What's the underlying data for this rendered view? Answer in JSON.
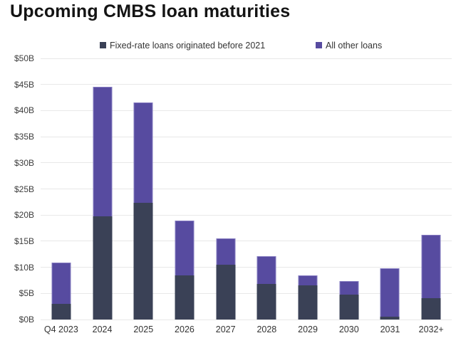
{
  "title": "Upcoming CMBS loan maturities",
  "colors": {
    "fixed_series": "#3a4156",
    "other_series": "#574ba0",
    "gridline": "#e8e8e8",
    "axis_text": "#3d3d3d",
    "title_text": "#141414"
  },
  "chart_data": {
    "type": "bar",
    "stacked": true,
    "title": "Upcoming CMBS loan maturities",
    "categories": [
      "Q4 2023",
      "2024",
      "2025",
      "2026",
      "2027",
      "2028",
      "2029",
      "2030",
      "2031",
      "2032+"
    ],
    "series": [
      {
        "name": "Fixed-rate loans originated before 2021",
        "color": "#3a4156",
        "values": [
          3.0,
          19.8,
          22.4,
          8.5,
          10.5,
          6.8,
          6.6,
          4.8,
          0.6,
          4.1
        ]
      },
      {
        "name": "All other loans",
        "color": "#574ba0",
        "values": [
          7.9,
          24.7,
          19.1,
          10.5,
          5.1,
          5.3,
          1.9,
          2.5,
          9.2,
          12.1
        ]
      }
    ],
    "totals": [
      10.9,
      44.5,
      41.5,
      19.0,
      15.6,
      12.1,
      8.5,
      7.3,
      9.8,
      16.2
    ],
    "xlabel": "",
    "ylabel": "",
    "ylim": [
      0,
      50
    ],
    "ytick_step": 5,
    "ytick_labels": [
      "$0B",
      "$5B",
      "$10B",
      "$15B",
      "$20B",
      "$25B",
      "$30B",
      "$35B",
      "$40B",
      "$45B",
      "$50B"
    ],
    "unit": "USD billions",
    "grid": "horizontal",
    "legend_position": "top"
  }
}
